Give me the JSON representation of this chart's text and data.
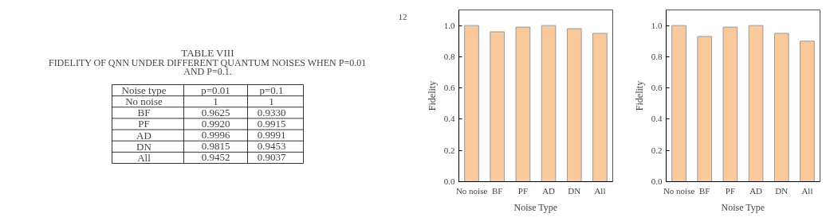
{
  "chart_data": [
    {
      "type": "other",
      "title": "TABLE VIII",
      "subtitle": "FIDELITY OF QNN UNDER DIFFERENT QUANTUM NOISES WHEN P=0.01 AND P=0.1.",
      "annotations": [
        "12",
        "Noise type",
        "p=0.01",
        "p=0.1",
        "No noise",
        "1",
        "1",
        "BF",
        "0.9625",
        "0.9330",
        "PF",
        "0.9920",
        "0.9915",
        "AD",
        "0.9996",
        "0.9991",
        "DN",
        "0.9815",
        "0.9453",
        "All",
        "0.9452",
        "0.9037"
      ]
    },
    {
      "type": "bar",
      "xlabel": "Noise Type",
      "ylabel": "Fidelity",
      "categories": [
        "No noise",
        "BF",
        "PF",
        "AD",
        "DN",
        "All"
      ],
      "series": [
        {
          "color": "#f9c89b",
          "values": [
            1.0,
            0.96,
            0.99,
            1.0,
            0.98,
            0.95
          ]
        }
      ],
      "ylim": [
        0,
        1.1
      ],
      "yticks": [
        {
          "value": 0,
          "label": "0.0"
        },
        {
          "value": 0.2,
          "label": "0.2"
        },
        {
          "value": 0.4,
          "label": "0.4"
        },
        {
          "value": 0.6,
          "label": "0.6"
        },
        {
          "value": 0.8,
          "label": "0.8"
        },
        {
          "value": 1,
          "label": "1.0"
        }
      ],
      "grid": false
    },
    {
      "type": "bar",
      "xlabel": "Noise Type",
      "ylabel": "Fidelity",
      "categories": [
        "No noise",
        "BF",
        "PF",
        "AD",
        "DN",
        "All"
      ],
      "series": [
        {
          "color": "#f9c89b",
          "values": [
            1.0,
            0.93,
            0.99,
            1.0,
            0.95,
            0.9
          ]
        }
      ],
      "ylim": [
        0,
        1.1
      ],
      "yticks": [
        {
          "value": 0,
          "label": "0.0"
        },
        {
          "value": 0.2,
          "label": "0.2"
        },
        {
          "value": 0.4,
          "label": "0.4"
        },
        {
          "value": 0.6,
          "label": "0.6"
        },
        {
          "value": 0.8,
          "label": "0.8"
        },
        {
          "value": 1,
          "label": "1.0"
        }
      ],
      "grid": false
    }
  ]
}
